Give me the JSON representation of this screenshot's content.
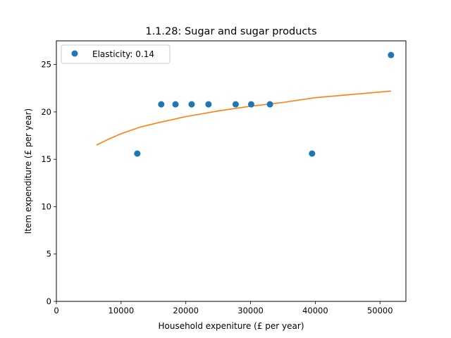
{
  "chart_data": {
    "type": "scatter",
    "title": "1.1.28: Sugar and sugar products",
    "xlabel": "Household expeniture (£ per year)",
    "ylabel": "Item expenditure (£ per year)",
    "xlim": [
      0,
      54000
    ],
    "ylim": [
      0,
      27.5
    ],
    "xticks": [
      0,
      10000,
      20000,
      30000,
      40000,
      50000
    ],
    "yticks": [
      0,
      5,
      10,
      15,
      20,
      25
    ],
    "grid": false,
    "legend_position": "top-left",
    "series": [
      {
        "name": "Elasticity: 0.14",
        "kind": "scatter",
        "color": "#1f77b4",
        "points": [
          {
            "x": 12500,
            "y": 15.6
          },
          {
            "x": 16200,
            "y": 20.8
          },
          {
            "x": 18400,
            "y": 20.8
          },
          {
            "x": 20900,
            "y": 20.8
          },
          {
            "x": 23500,
            "y": 20.8
          },
          {
            "x": 27700,
            "y": 20.8
          },
          {
            "x": 30100,
            "y": 20.8
          },
          {
            "x": 33000,
            "y": 20.8
          },
          {
            "x": 39500,
            "y": 15.6
          },
          {
            "x": 51700,
            "y": 26.0
          }
        ]
      },
      {
        "kind": "line",
        "color": "#ff7f0e",
        "points": [
          {
            "x": 6200,
            "y": 16.5
          },
          {
            "x": 8000,
            "y": 17.1
          },
          {
            "x": 10000,
            "y": 17.7
          },
          {
            "x": 13000,
            "y": 18.4
          },
          {
            "x": 16000,
            "y": 18.9
          },
          {
            "x": 20000,
            "y": 19.5
          },
          {
            "x": 25000,
            "y": 20.1
          },
          {
            "x": 30000,
            "y": 20.6
          },
          {
            "x": 35000,
            "y": 21.0
          },
          {
            "x": 40000,
            "y": 21.5
          },
          {
            "x": 45000,
            "y": 21.8
          },
          {
            "x": 51700,
            "y": 22.2
          }
        ]
      }
    ]
  }
}
